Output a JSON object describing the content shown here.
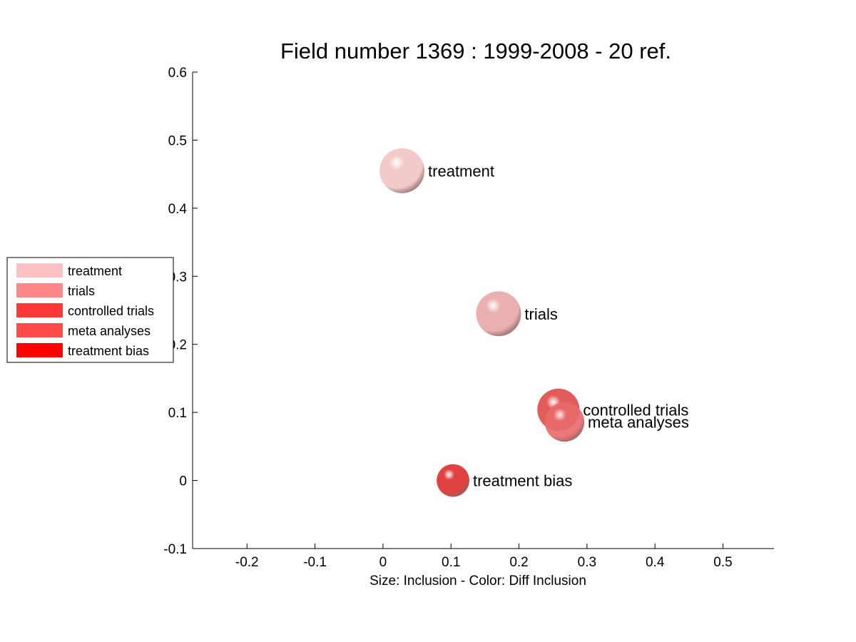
{
  "chart_data": {
    "type": "scatter",
    "title": "Field number 1369 : 1999-2008  - 20 ref.",
    "xlabel": "Size: Inclusion - Color: Diff Inclusion",
    "ylabel": "",
    "xlim": [
      -0.28,
      0.575
    ],
    "ylim": [
      -0.1,
      0.6
    ],
    "xticks": [
      -0.2,
      -0.1,
      0,
      0.1,
      0.2,
      0.3,
      0.4,
      0.5
    ],
    "xtick_labels": [
      "-0.2",
      "-0.1",
      "0",
      "0.1",
      "0.2",
      "0.3",
      "0.4",
      "0.5"
    ],
    "yticks": [
      -0.1,
      0,
      0.1,
      0.2,
      0.3,
      0.4,
      0.5,
      0.6
    ],
    "ytick_labels": [
      "-0.1",
      "0",
      "0.1",
      "0.2",
      "0.3",
      "0.4",
      "0.5",
      "0.6"
    ],
    "grid": false,
    "legend_position": "center-left, outside",
    "points": [
      {
        "label": "treatment",
        "x": 0.028,
        "y": 0.455,
        "size": 0.033,
        "color": "#f2c4c4"
      },
      {
        "label": "trials",
        "x": 0.17,
        "y": 0.245,
        "size": 0.033,
        "color": "#e8a6a6"
      },
      {
        "label": "controlled trials",
        "x": 0.258,
        "y": 0.104,
        "size": 0.031,
        "color": "#e04a4a"
      },
      {
        "label": "meta analyses",
        "x": 0.267,
        "y": 0.086,
        "size": 0.029,
        "color": "#e86a6a"
      },
      {
        "label": "treatment bias",
        "x": 0.103,
        "y": 0.0,
        "size": 0.024,
        "color": "#dd2c2c"
      }
    ],
    "legend": [
      {
        "label": "treatment",
        "color": "#ffc2c2"
      },
      {
        "label": "trials",
        "color": "#ff8686"
      },
      {
        "label": "controlled trials",
        "color": "#ff3838"
      },
      {
        "label": "meta analyses",
        "color": "#ff4a4a"
      },
      {
        "label": "treatment bias",
        "color": "#ff0000"
      }
    ]
  }
}
